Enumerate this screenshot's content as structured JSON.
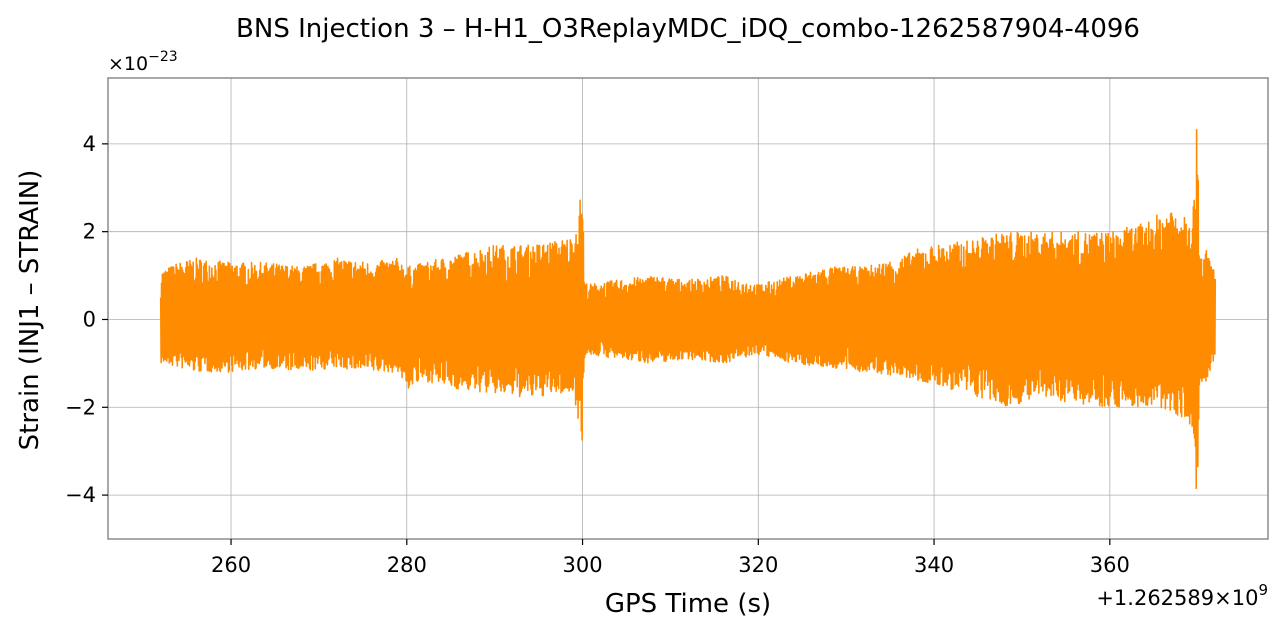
{
  "chart_data": {
    "type": "line",
    "title": "BNS Injection 3 – H-H1_O3ReplayMDC_iDQ_combo-1262587904-4096",
    "xlabel": "GPS Time (s)",
    "ylabel": "Strain (INJ1 – STRAIN)",
    "x_offset_label": "+1.262589×10",
    "x_offset_exp": "9",
    "y_scale_label": "×10",
    "y_scale_exp": "−23",
    "xlim": [
      246,
      378
    ],
    "ylim": [
      -5.0,
      5.5
    ],
    "x_ticks": [
      260,
      280,
      300,
      320,
      340,
      360
    ],
    "x_tick_labels": [
      "260",
      "280",
      "300",
      "320",
      "340",
      "360"
    ],
    "y_ticks": [
      -4,
      -2,
      0,
      2,
      4
    ],
    "y_tick_labels": [
      "−4",
      "−2",
      "0",
      "2",
      "4"
    ],
    "grid": true,
    "series": [
      {
        "color": "#ff8c00",
        "envelope": {
          "x": [
            252,
            254,
            256,
            260,
            264,
            268,
            272,
            276,
            279,
            280,
            282,
            286,
            290,
            294,
            297,
            299,
            299.6,
            300,
            300.2,
            300.6,
            304,
            308,
            312,
            316,
            320,
            324,
            328,
            332,
            336,
            338,
            340,
            344,
            348,
            352,
            356,
            360,
            364,
            367,
            368.8,
            369.6,
            370,
            370.2,
            370.6,
            371,
            372
          ],
          "upper": [
            1.1,
            1.3,
            1.4,
            1.3,
            1.3,
            1.2,
            1.4,
            1.3,
            1.4,
            1.2,
            1.3,
            1.5,
            1.7,
            1.7,
            1.8,
            1.9,
            2.6,
            3.1,
            0.9,
            0.8,
            0.9,
            1.0,
            0.9,
            1.0,
            0.8,
            1.0,
            1.2,
            1.2,
            1.4,
            1.6,
            1.7,
            1.8,
            2.0,
            2.0,
            2.0,
            2.0,
            2.2,
            2.6,
            2.5,
            2.8,
            5.0,
            1.6,
            1.5,
            1.6,
            1.1
          ],
          "lower": [
            -1.0,
            -1.1,
            -1.2,
            -1.2,
            -1.1,
            -1.2,
            -1.1,
            -1.2,
            -1.2,
            -1.6,
            -1.4,
            -1.6,
            -1.7,
            -1.8,
            -1.7,
            -1.7,
            -2.4,
            -2.8,
            -0.9,
            -0.8,
            -0.9,
            -1.0,
            -0.9,
            -1.0,
            -0.8,
            -1.0,
            -1.1,
            -1.2,
            -1.3,
            -1.4,
            -1.5,
            -1.7,
            -2.0,
            -1.8,
            -1.9,
            -2.0,
            -2.0,
            -2.1,
            -2.3,
            -3.0,
            -4.6,
            -1.6,
            -1.5,
            -1.5,
            -0.9
          ]
        }
      }
    ]
  }
}
